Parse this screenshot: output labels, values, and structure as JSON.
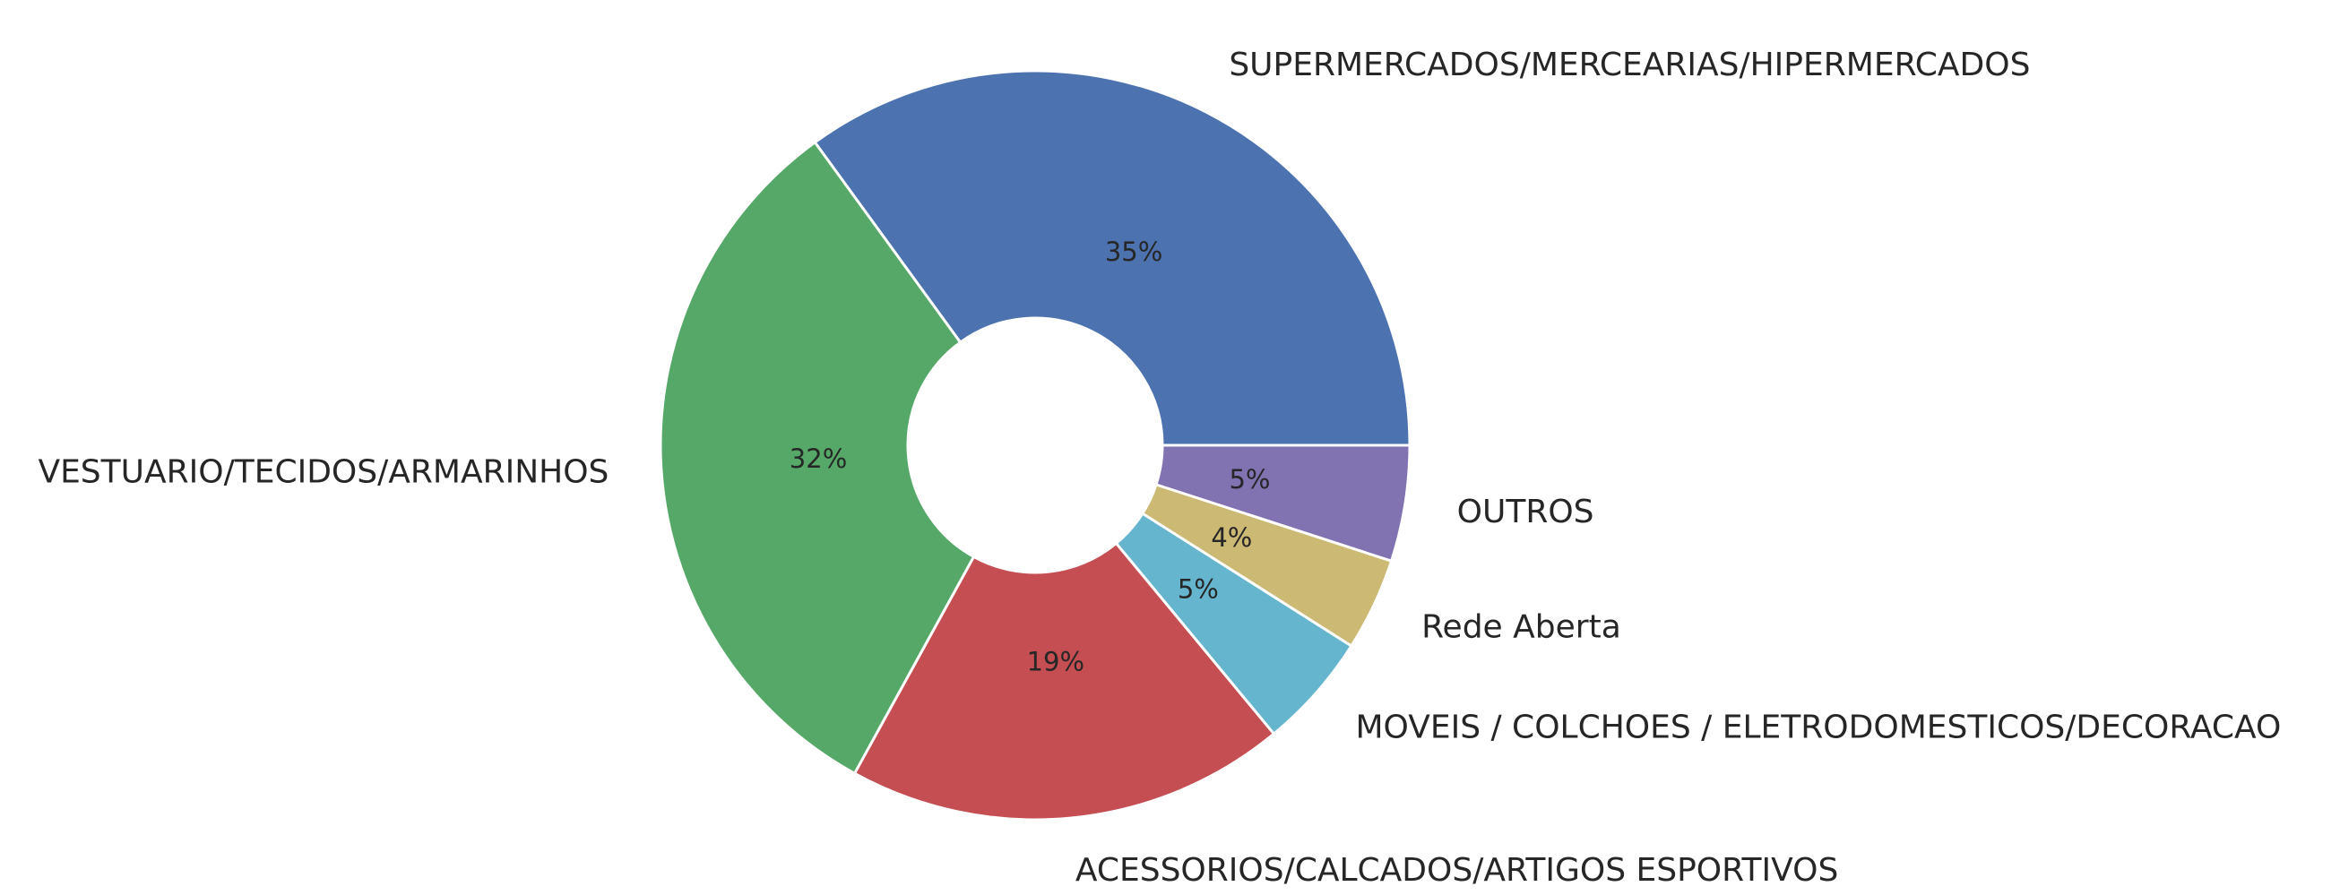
{
  "chart_data": {
    "type": "pie",
    "donut": true,
    "title": "",
    "labels": [
      "SUPERMERCADOS/MERCEARIAS/HIPERMERCADOS",
      "VESTUARIO/TECIDOS/ARMARINHOS",
      "ACESSORIOS/CALCADOS/ARTIGOS ESPORTIVOS",
      "MOVEIS / COLCHOES / ELETRODOMESTICOS/DECORACAO",
      "Rede Aberta",
      "OUTROS"
    ],
    "values": [
      35,
      32,
      19,
      5,
      4,
      5
    ],
    "value_labels": [
      "35%",
      "32%",
      "19%",
      "5%",
      "4%",
      "5%"
    ],
    "colors": [
      "#4c72b0",
      "#55a868",
      "#c44e52",
      "#64b5cd",
      "#ccb974",
      "#8172b2"
    ],
    "start_angle_deg": 0,
    "direction": "counterclockwise",
    "legend": "none"
  }
}
